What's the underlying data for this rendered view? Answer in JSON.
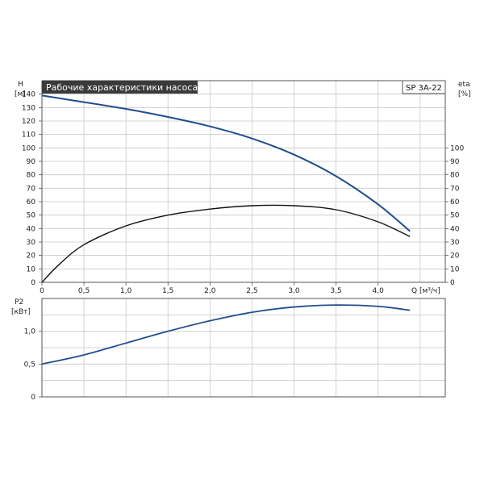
{
  "title": "Рабочие характеристики насоса",
  "model": "SP 3A-22",
  "chart_data": [
    {
      "type": "line",
      "xlabel": "Q [м³/ч]",
      "ylabel": [
        "H",
        "[м]"
      ],
      "ylabel_right": [
        "eta",
        "[%]"
      ],
      "xlim": [
        0,
        4.8
      ],
      "xticks": [
        "0",
        "0,5",
        "1,0",
        "1,5",
        "2,0",
        "2,5",
        "3,0",
        "3,5",
        "4,0"
      ],
      "ylim": [
        0,
        150
      ],
      "yticks": [
        "0",
        "10",
        "20",
        "30",
        "40",
        "50",
        "60",
        "70",
        "80",
        "90",
        "100",
        "110",
        "120",
        "130",
        "140"
      ],
      "ylim_right": [
        0,
        150
      ],
      "yticks_right": [
        "0",
        "10",
        "20",
        "30",
        "40",
        "50",
        "60",
        "70",
        "80",
        "90",
        "100"
      ],
      "grid": true,
      "series": [
        {
          "axis": "left",
          "color": "#1f4e8c",
          "x": [
            0,
            0.4,
            1.0,
            1.5,
            2.0,
            2.5,
            3.0,
            3.5,
            4.0,
            4.38
          ],
          "y": [
            139,
            135,
            129,
            123,
            116,
            107,
            95,
            79,
            58,
            38
          ]
        },
        {
          "axis": "right",
          "color": "#111111",
          "x": [
            0,
            0.2,
            0.5,
            1.0,
            1.5,
            2.0,
            2.5,
            3.0,
            3.5,
            4.0,
            4.38
          ],
          "y": [
            0,
            13,
            28,
            42,
            50,
            54.5,
            57,
            57,
            54,
            45,
            34
          ]
        }
      ]
    },
    {
      "type": "line",
      "xlabel": "",
      "ylabel": [
        "P2",
        "[кВт]"
      ],
      "xlim": [
        0,
        4.8
      ],
      "ylim": [
        0,
        1.5
      ],
      "yticks": [
        "0",
        "0,5",
        "1,0"
      ],
      "grid": true,
      "series": [
        {
          "color": "#1f4e8c",
          "x": [
            0,
            0.5,
            1.0,
            1.5,
            2.0,
            2.5,
            3.0,
            3.5,
            4.0,
            4.38
          ],
          "y": [
            0.5,
            0.64,
            0.82,
            1.0,
            1.16,
            1.29,
            1.37,
            1.4,
            1.38,
            1.32
          ]
        }
      ]
    }
  ]
}
